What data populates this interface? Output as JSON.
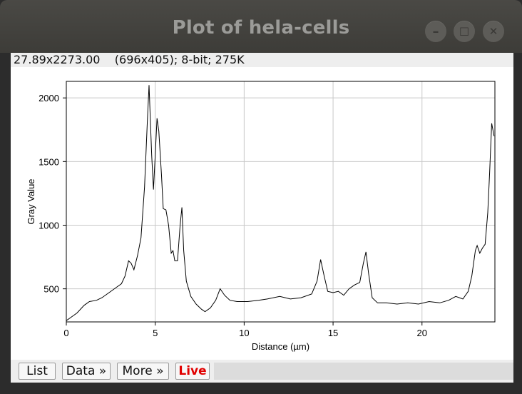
{
  "window": {
    "title": "Plot of hela-cells",
    "controls": {
      "minimize": "–",
      "maximize": "☐",
      "close": "✕"
    }
  },
  "info_bar": {
    "cursor": "27.89x2273.00",
    "image_info": "(696x405); 8-bit; 275K"
  },
  "buttons": {
    "list": "List",
    "data": "Data »",
    "more": "More »",
    "live": "Live"
  },
  "colors": {
    "live": "#e10000",
    "plot_line": "#000000",
    "grid": "#c8c8c8"
  },
  "chart_data": {
    "type": "line",
    "title": "",
    "xlabel": "Distance (µm)",
    "ylabel": "Gray Value",
    "xlim": [
      0,
      24.1
    ],
    "ylim": [
      240,
      2130
    ],
    "x_ticks": [
      0,
      5,
      10,
      15,
      20
    ],
    "y_ticks": [
      500,
      1000,
      1500,
      2000
    ],
    "grid": true,
    "series": [
      {
        "name": "",
        "points": [
          [
            0,
            250
          ],
          [
            0.3,
            280
          ],
          [
            0.6,
            310
          ],
          [
            1.0,
            370
          ],
          [
            1.3,
            400
          ],
          [
            1.7,
            410
          ],
          [
            2.0,
            430
          ],
          [
            2.4,
            470
          ],
          [
            2.8,
            510
          ],
          [
            3.1,
            540
          ],
          [
            3.3,
            600
          ],
          [
            3.5,
            720
          ],
          [
            3.65,
            700
          ],
          [
            3.8,
            650
          ],
          [
            4.0,
            760
          ],
          [
            4.2,
            900
          ],
          [
            4.4,
            1300
          ],
          [
            4.55,
            1800
          ],
          [
            4.65,
            2100
          ],
          [
            4.8,
            1550
          ],
          [
            4.9,
            1280
          ],
          [
            5.0,
            1550
          ],
          [
            5.1,
            1840
          ],
          [
            5.2,
            1740
          ],
          [
            5.35,
            1400
          ],
          [
            5.45,
            1130
          ],
          [
            5.6,
            1120
          ],
          [
            5.75,
            1000
          ],
          [
            5.9,
            780
          ],
          [
            6.0,
            800
          ],
          [
            6.1,
            720
          ],
          [
            6.25,
            720
          ],
          [
            6.4,
            1000
          ],
          [
            6.5,
            1140
          ],
          [
            6.6,
            800
          ],
          [
            6.75,
            560
          ],
          [
            7.0,
            440
          ],
          [
            7.3,
            380
          ],
          [
            7.6,
            340
          ],
          [
            7.8,
            320
          ],
          [
            8.1,
            350
          ],
          [
            8.4,
            410
          ],
          [
            8.65,
            500
          ],
          [
            8.9,
            450
          ],
          [
            9.2,
            410
          ],
          [
            9.6,
            400
          ],
          [
            10.2,
            400
          ],
          [
            10.8,
            410
          ],
          [
            11.3,
            420
          ],
          [
            12.0,
            440
          ],
          [
            12.6,
            420
          ],
          [
            13.2,
            430
          ],
          [
            13.8,
            460
          ],
          [
            14.1,
            560
          ],
          [
            14.3,
            730
          ],
          [
            14.5,
            600
          ],
          [
            14.7,
            480
          ],
          [
            15.0,
            470
          ],
          [
            15.3,
            480
          ],
          [
            15.6,
            450
          ],
          [
            15.9,
            500
          ],
          [
            16.2,
            530
          ],
          [
            16.5,
            550
          ],
          [
            16.7,
            700
          ],
          [
            16.85,
            790
          ],
          [
            17.0,
            620
          ],
          [
            17.2,
            430
          ],
          [
            17.5,
            390
          ],
          [
            18.0,
            390
          ],
          [
            18.6,
            380
          ],
          [
            19.2,
            390
          ],
          [
            19.8,
            380
          ],
          [
            20.4,
            400
          ],
          [
            21.0,
            390
          ],
          [
            21.5,
            410
          ],
          [
            21.9,
            440
          ],
          [
            22.3,
            420
          ],
          [
            22.6,
            480
          ],
          [
            22.8,
            600
          ],
          [
            23.0,
            800
          ],
          [
            23.1,
            840
          ],
          [
            23.25,
            780
          ],
          [
            23.4,
            820
          ],
          [
            23.55,
            850
          ],
          [
            23.7,
            1100
          ],
          [
            23.8,
            1400
          ],
          [
            23.92,
            1800
          ],
          [
            24.05,
            1700
          ]
        ]
      }
    ]
  }
}
